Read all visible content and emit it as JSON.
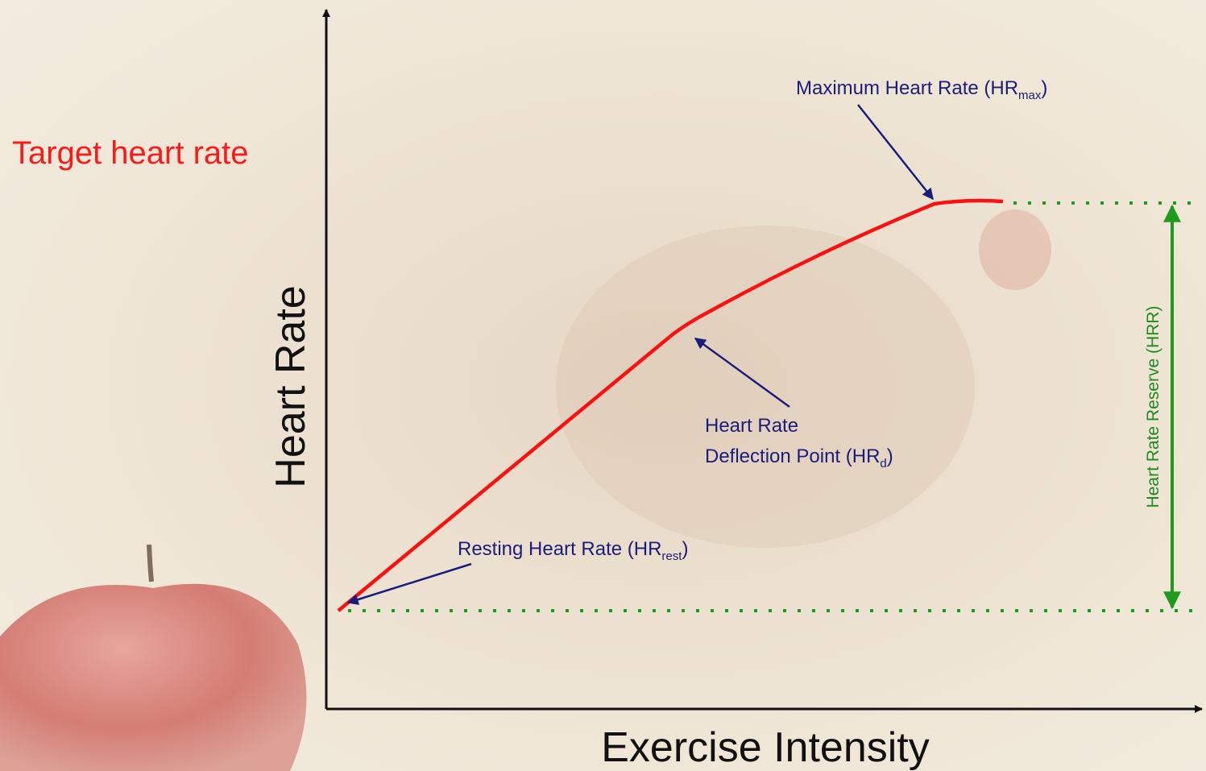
{
  "title": "Target heart rate",
  "axes": {
    "y_label": "Heart Rate",
    "x_label": "Exercise Intensity"
  },
  "annotations": {
    "max": {
      "text": "Maximum Heart Rate (HR",
      "sub": "max",
      "end": ")"
    },
    "deflection": {
      "line1": "Heart Rate",
      "text": "Deflection Point (HR",
      "sub": "d",
      "end": ")"
    },
    "rest": {
      "text": "Resting Heart Rate (HR",
      "sub": "rest",
      "end": ")"
    },
    "reserve": "Heart Rate Reserve (HRR)"
  }
}
